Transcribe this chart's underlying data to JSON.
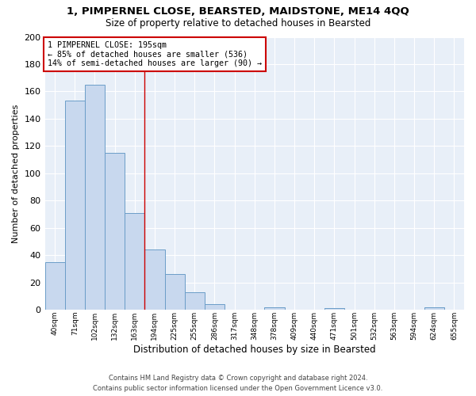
{
  "title1": "1, PIMPERNEL CLOSE, BEARSTED, MAIDSTONE, ME14 4QQ",
  "title2": "Size of property relative to detached houses in Bearsted",
  "xlabel": "Distribution of detached houses by size in Bearsted",
  "ylabel": "Number of detached properties",
  "bin_labels": [
    "40sqm",
    "71sqm",
    "102sqm",
    "132sqm",
    "163sqm",
    "194sqm",
    "225sqm",
    "255sqm",
    "286sqm",
    "317sqm",
    "348sqm",
    "378sqm",
    "409sqm",
    "440sqm",
    "471sqm",
    "501sqm",
    "532sqm",
    "563sqm",
    "594sqm",
    "624sqm",
    "655sqm"
  ],
  "bar_values": [
    35,
    153,
    165,
    115,
    71,
    44,
    26,
    13,
    4,
    0,
    0,
    2,
    0,
    0,
    1,
    0,
    0,
    0,
    0,
    2,
    0
  ],
  "bar_color": "#c8d8ee",
  "bar_edge_color": "#6b9dc8",
  "vline_x": 5,
  "annotation_line1": "1 PIMPERNEL CLOSE: 195sqm",
  "annotation_line2": "← 85% of detached houses are smaller (536)",
  "annotation_line3": "14% of semi-detached houses are larger (90) →",
  "annotation_box_color": "#ffffff",
  "annotation_box_edge": "#cc0000",
  "vline_color": "#cc0000",
  "ylim": [
    0,
    200
  ],
  "yticks": [
    0,
    20,
    40,
    60,
    80,
    100,
    120,
    140,
    160,
    180,
    200
  ],
  "footer1": "Contains HM Land Registry data © Crown copyright and database right 2024.",
  "footer2": "Contains public sector information licensed under the Open Government Licence v3.0.",
  "plot_bg_color": "#e8eff8",
  "fig_bg_color": "#ffffff",
  "grid_color": "#ffffff"
}
